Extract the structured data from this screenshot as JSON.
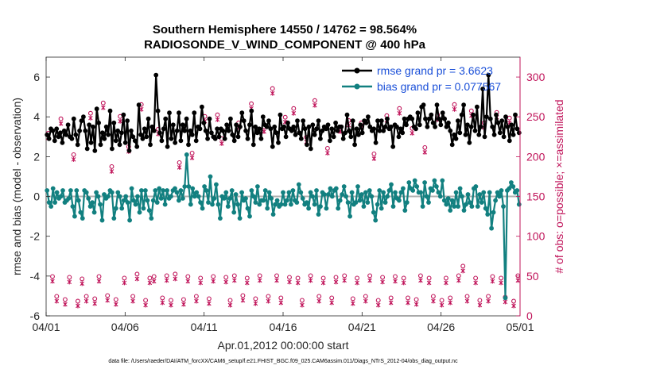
{
  "chart_data": {
    "type": "line",
    "title": "Southern Hemisphere 14550 / 14762 = 98.564%",
    "subtitle": "RADIOSONDE_V_WIND_COMPONENT @ 400 hPa",
    "xlabel": "Apr.01,2012 00:00:00 start",
    "ylabel": "rmse and bias (model - observation)",
    "ylabel_right": "# of obs: o=possible; ×=assimilated",
    "xlim": [
      0,
      30
    ],
    "ylim": [
      -6,
      7
    ],
    "ylim_right": [
      0,
      325
    ],
    "x_ticks": [
      0,
      5,
      10,
      15,
      20,
      25,
      30
    ],
    "x_tick_labels": [
      "04/01",
      "04/06",
      "04/11",
      "04/16",
      "04/21",
      "04/26",
      "05/01"
    ],
    "y_ticks": [
      -6,
      -4,
      -2,
      0,
      2,
      4,
      6
    ],
    "y_tick_labels": [
      "-6",
      "-4",
      "-2",
      "0",
      "2",
      "4",
      "6"
    ],
    "y_ticks_right": [
      0,
      50,
      100,
      150,
      200,
      250,
      300
    ],
    "y_tick_labels_right": [
      "0",
      "50",
      "100",
      "150",
      "200",
      "250",
      "300"
    ],
    "footnote": "data file: /Users/raeder/DAI/ATM_forcXX/CAM6_setup/f.e21.FHIST_BGC.f09_025.CAM6assim.011/Diags_NTrS_2012-04/obs_diag_output.nc",
    "legend": [
      {
        "name": "rmse grand pr = 3.6623",
        "color": "#000000"
      },
      {
        "name": "bias grand pr = 0.077567",
        "color": "#128080"
      }
    ],
    "series": [
      {
        "name": "rmse",
        "color": "#000000",
        "values": [
          3.1,
          2.9,
          3.4,
          3.3,
          2.8,
          3.4,
          3.0,
          3.2,
          2.7,
          3.3,
          3.1,
          3.6,
          3.0,
          2.9,
          3.9,
          3.1,
          2.6,
          3.3,
          3.8,
          4.0,
          3.3,
          2.4,
          3.6,
          2.7,
          3.5,
          2.3,
          4.4,
          3.7,
          2.6,
          3.2,
          2.9,
          3.5,
          3.1,
          4.3,
          2.4,
          3.7,
          2.8,
          3.3,
          2.6,
          3.2,
          4.1,
          2.7,
          3.8,
          2.3,
          3.3,
          3.0,
          2.8,
          2.5,
          4.6,
          3.1,
          2.9,
          3.4,
          3.0,
          3.9,
          2.6,
          3.5,
          3.3,
          6.1,
          4.3,
          3.2,
          2.8,
          3.4,
          3.9,
          2.5,
          4.2,
          2.9,
          3.6,
          2.7,
          3.3,
          4.2,
          2.8,
          3.6,
          3.3,
          3.9,
          2.6,
          3.3,
          3.1,
          4.2,
          2.8,
          3.5,
          3.4,
          4.5,
          3.7,
          3.3,
          2.9,
          3.9,
          3.2,
          3.0,
          2.9,
          3.4,
          3.0,
          3.4,
          3.3,
          2.9,
          3.6,
          3.3,
          3.9,
          3.1,
          2.8,
          3.6,
          3.0,
          3.5,
          4.2,
          3.8,
          3.3,
          2.9,
          3.6,
          4.3,
          2.6,
          3.5,
          3.2,
          3.4,
          2.9,
          4.0,
          3.6,
          3.5,
          3.8,
          3.4,
          2.5,
          3.5,
          3.2,
          2.7,
          4.1,
          3.4,
          3.5,
          3.0,
          3.7,
          3.4,
          3.3,
          3.5,
          3.1,
          3.8,
          3.2,
          2.9,
          3.8,
          3.4,
          2.6,
          3.5,
          2.4,
          3.6,
          3.1,
          3.4,
          3.8,
          2.9,
          3.3,
          3.5,
          3.4,
          3.6,
          2.8,
          3.4,
          3.0,
          3.7,
          3.3,
          3.5,
          3.5,
          2.9,
          3.2,
          4.1,
          3.3,
          3.0,
          3.8,
          2.6,
          3.4,
          3.1,
          3.6,
          3.2,
          3.8,
          3.7,
          4.0,
          3.5,
          3.3,
          3.4,
          2.7,
          3.8,
          3.3,
          3.8,
          3.3,
          3.5,
          3.9,
          3.4,
          3.5,
          2.5,
          3.6,
          3.5,
          3.0,
          3.4,
          3.2,
          3.9,
          3.6,
          3.9,
          4.0,
          3.9,
          3.5,
          3.4,
          4.2,
          3.6,
          4.5,
          4.6,
          3.9,
          3.5,
          3.9,
          4.1,
          3.7,
          3.5,
          4.6,
          3.9,
          3.6,
          4.2,
          3.9,
          3.5,
          3.7,
          3.3,
          2.6,
          3.1,
          2.9,
          3.8,
          3.2,
          4.1,
          4.6,
          3.1,
          3.6,
          2.7,
          3.5,
          4.1,
          3.3,
          4.5,
          3.1,
          3.5,
          5.4,
          3.0,
          4.0,
          6.1,
          3.9,
          3.5,
          3.1,
          4.1,
          3.7,
          3.2,
          3.8,
          3.0,
          4.0,
          3.5,
          2.8,
          3.6,
          3.1,
          4.1,
          3.4,
          3.2
        ]
      },
      {
        "name": "bias",
        "color": "#128080",
        "values": [
          0.3,
          -0.3,
          -0.5,
          0.4,
          -0.3,
          0.2,
          -0.1,
          0.0,
          0.3,
          -0.3,
          -0.2,
          -0.1,
          0.3,
          -0.5,
          -1.0,
          0.3,
          -0.2,
          -0.8,
          -1.1,
          0.3,
          0.2,
          -0.1,
          -0.5,
          -0.3,
          -0.8,
          0.2,
          0.0,
          -0.4,
          -1.2,
          0.1,
          -0.1,
          0.0,
          0.3,
          0.2,
          -1.1,
          -0.6,
          0.2,
          0.0,
          -0.6,
          -0.2,
          0.0,
          -0.3,
          -1.2,
          0.4,
          -0.2,
          -0.4,
          0.0,
          -0.8,
          0.3,
          -0.6,
          0.3,
          -0.2,
          -0.7,
          -1.1,
          -0.2,
          0.3,
          -0.3,
          0.4,
          -0.1,
          0.3,
          -0.4,
          0.3,
          -0.1,
          0.0,
          0.3,
          0.4,
          0.2,
          -0.2,
          0.3,
          -0.1,
          0.5,
          2.1,
          0.5,
          -0.4,
          0.4,
          0.0,
          0.2,
          0.0,
          -0.3,
          -0.6,
          0.5,
          0.3,
          -0.3,
          1.0,
          -0.4,
          -0.1,
          0.6,
          -0.4,
          -1.1,
          0.0,
          -0.1,
          0.2,
          -0.5,
          -0.1,
          0.3,
          -0.8,
          0.1,
          -0.4,
          -1.1,
          0.2,
          -0.2,
          -0.1,
          -0.6,
          -1.0,
          0.3,
          0.0,
          -0.3,
          0.5,
          -0.4,
          -0.2,
          -0.2,
          0.3,
          -0.6,
          0.2,
          -0.1,
          -0.9,
          -0.4,
          -0.2,
          -0.5,
          -0.4,
          0.2,
          -0.4,
          -0.2,
          0.2,
          -0.4,
          0.3,
          -0.2,
          -0.3,
          0.6,
          0.2,
          -0.1,
          -0.4,
          -0.3,
          -0.6,
          0.2,
          0.0,
          -0.4,
          0.3,
          -0.9,
          -0.5,
          0.2,
          0.1,
          -0.6,
          0.1,
          0.4,
          0.0,
          0.3,
          0.4,
          -0.6,
          -0.2,
          0.1,
          0.5,
          0.0,
          -0.3,
          -1.0,
          0.2,
          -0.4,
          -0.3,
          0.5,
          -0.2,
          0.1,
          -0.5,
          0.2,
          -0.3,
          0.3,
          0.0,
          -0.8,
          -1.2,
          -0.4,
          0.3,
          -0.6,
          0.2,
          -0.3,
          0.0,
          0.3,
          0.6,
          -0.5,
          0.2,
          -0.1,
          -0.2,
          0.2,
          0.4,
          -0.7,
          -0.3,
          0.7,
          0.4,
          0.3,
          0.8,
          0.5,
          0.2,
          0.2,
          -0.5,
          0.7,
          0.0,
          -0.3,
          0.4,
          0.3,
          0.8,
          0.5,
          0.2,
          0.0,
          0.8,
          -0.2,
          -0.4,
          -0.1,
          -0.7,
          -0.2,
          -0.5,
          0.2,
          -0.5,
          0.4,
          0.0,
          -0.7,
          -0.4,
          0.1,
          -0.3,
          -0.5,
          0.4,
          0.5,
          -0.5,
          0.1,
          -0.3,
          0.2,
          -0.6,
          -0.9,
          0.2,
          -1.6,
          -0.8,
          -0.2,
          0.2,
          0.0,
          0.3,
          -0.5,
          -5.1,
          0.3,
          0.4,
          0.7,
          0.5,
          0.2,
          0.3,
          -0.4
        ]
      },
      {
        "name": "obs_possible",
        "color": "#c0145a",
        "marker": "o",
        "axis": "right",
        "values": [
          227,
          47,
          22,
          245,
          18,
          46,
          200,
          16,
          44,
          22,
          252,
          19,
          47,
          265,
          23,
          185,
          18,
          248,
          45,
          210,
          22,
          50,
          263,
          17,
          45,
          47,
          232,
          20,
          48,
          17,
          50,
          190,
          18,
          47,
          202,
          22,
          45,
          248,
          19,
          47,
          250,
          220,
          46,
          17,
          48,
          240,
          23,
          45,
          264,
          19,
          48,
          235,
          22,
          283,
          48,
          20,
          247,
          46,
          258,
          45,
          17,
          222,
          48,
          268,
          22,
          45,
          208,
          20,
          46,
          235,
          48,
          243,
          19,
          45,
          240,
          22,
          48,
          201,
          17,
          46,
          249,
          20,
          47,
          258,
          45,
          20,
          233,
          18,
          48,
          209,
          45,
          22,
          250,
          17,
          45,
          20,
          263,
          48,
          60,
          22,
          255,
          45,
          17,
          240,
          22,
          47,
          253,
          45,
          21,
          246,
          16,
          48
        ]
      },
      {
        "name": "obs_assimilated",
        "color": "#c0145a",
        "marker": "x",
        "axis": "right",
        "values": [
          225,
          45,
          20,
          243,
          16,
          44,
          198,
          14,
          42,
          20,
          250,
          17,
          45,
          263,
          21,
          183,
          16,
          246,
          43,
          208,
          20,
          48,
          261,
          15,
          43,
          45,
          230,
          18,
          46,
          15,
          48,
          188,
          16,
          45,
          200,
          20,
          43,
          246,
          17,
          45,
          248,
          218,
          44,
          15,
          46,
          238,
          21,
          43,
          262,
          17,
          46,
          233,
          20,
          281,
          46,
          18,
          245,
          44,
          256,
          43,
          15,
          220,
          46,
          266,
          20,
          43,
          206,
          18,
          44,
          233,
          46,
          241,
          17,
          43,
          238,
          20,
          46,
          199,
          15,
          44,
          247,
          18,
          45,
          256,
          43,
          18,
          231,
          16,
          46,
          207,
          43,
          20,
          248,
          15,
          43,
          18,
          261,
          46,
          58,
          20,
          253,
          43,
          15,
          238,
          20,
          45,
          251,
          43,
          19,
          244,
          14,
          46
        ]
      }
    ]
  }
}
